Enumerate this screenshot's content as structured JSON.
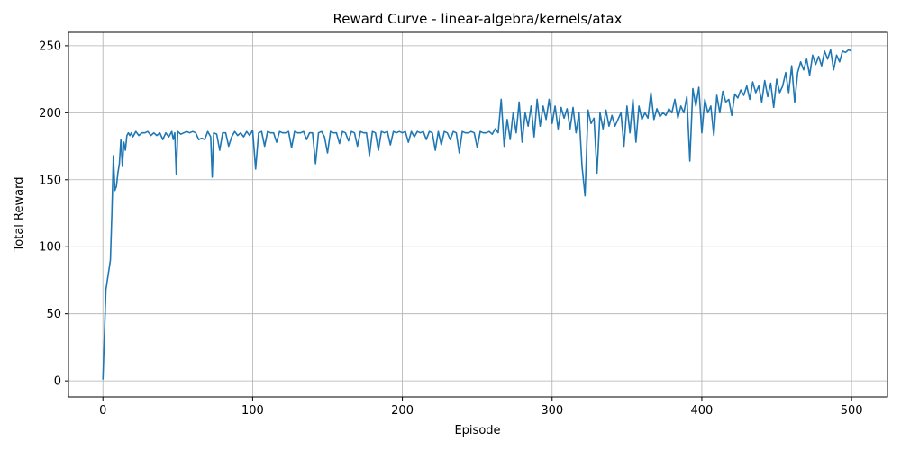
{
  "chart_data": {
    "type": "line",
    "title": "Reward Curve - linear-algebra/kernels/atax",
    "xlabel": "Episode",
    "ylabel": "Total Reward",
    "xlim": [
      -23,
      524
    ],
    "ylim": [
      -12,
      260
    ],
    "xticks": [
      0,
      100,
      200,
      300,
      400,
      500
    ],
    "yticks": [
      0,
      50,
      100,
      150,
      200,
      250
    ],
    "grid": true,
    "series": [
      {
        "color": "#1f77b4",
        "points": [
          [
            0,
            1
          ],
          [
            2,
            68
          ],
          [
            5,
            90
          ],
          [
            6,
            125
          ],
          [
            7,
            168
          ],
          [
            8,
            142
          ],
          [
            9,
            145
          ],
          [
            10,
            155
          ],
          [
            11,
            162
          ],
          [
            12,
            180
          ],
          [
            13,
            160
          ],
          [
            14,
            178
          ],
          [
            15,
            172
          ],
          [
            16,
            183
          ],
          [
            17,
            185
          ],
          [
            18,
            183
          ],
          [
            19,
            185
          ],
          [
            20,
            182
          ],
          [
            22,
            186
          ],
          [
            24,
            183
          ],
          [
            26,
            185
          ],
          [
            28,
            185
          ],
          [
            30,
            186
          ],
          [
            32,
            183
          ],
          [
            34,
            185
          ],
          [
            36,
            183
          ],
          [
            38,
            185
          ],
          [
            40,
            180
          ],
          [
            42,
            185
          ],
          [
            44,
            182
          ],
          [
            46,
            186
          ],
          [
            47,
            180
          ],
          [
            48,
            185
          ],
          [
            49,
            154
          ],
          [
            50,
            186
          ],
          [
            52,
            184
          ],
          [
            54,
            185
          ],
          [
            56,
            186
          ],
          [
            58,
            185
          ],
          [
            60,
            186
          ],
          [
            62,
            185
          ],
          [
            64,
            180
          ],
          [
            66,
            181
          ],
          [
            68,
            180
          ],
          [
            70,
            186
          ],
          [
            72,
            182
          ],
          [
            73,
            152
          ],
          [
            74,
            185
          ],
          [
            76,
            184
          ],
          [
            78,
            172
          ],
          [
            80,
            185
          ],
          [
            82,
            185
          ],
          [
            84,
            175
          ],
          [
            86,
            182
          ],
          [
            88,
            186
          ],
          [
            90,
            183
          ],
          [
            92,
            185
          ],
          [
            94,
            182
          ],
          [
            96,
            186
          ],
          [
            98,
            183
          ],
          [
            100,
            187
          ],
          [
            102,
            158
          ],
          [
            104,
            185
          ],
          [
            106,
            186
          ],
          [
            108,
            175
          ],
          [
            110,
            186
          ],
          [
            112,
            185
          ],
          [
            114,
            185
          ],
          [
            116,
            178
          ],
          [
            118,
            186
          ],
          [
            120,
            185
          ],
          [
            122,
            185
          ],
          [
            124,
            186
          ],
          [
            126,
            174
          ],
          [
            128,
            186
          ],
          [
            130,
            185
          ],
          [
            132,
            185
          ],
          [
            134,
            186
          ],
          [
            136,
            180
          ],
          [
            138,
            185
          ],
          [
            140,
            185
          ],
          [
            142,
            162
          ],
          [
            144,
            185
          ],
          [
            146,
            186
          ],
          [
            148,
            182
          ],
          [
            150,
            170
          ],
          [
            152,
            186
          ],
          [
            154,
            185
          ],
          [
            156,
            185
          ],
          [
            158,
            177
          ],
          [
            160,
            186
          ],
          [
            162,
            185
          ],
          [
            164,
            179
          ],
          [
            166,
            186
          ],
          [
            168,
            185
          ],
          [
            170,
            175
          ],
          [
            172,
            186
          ],
          [
            174,
            185
          ],
          [
            176,
            185
          ],
          [
            178,
            168
          ],
          [
            180,
            186
          ],
          [
            182,
            185
          ],
          [
            184,
            172
          ],
          [
            186,
            186
          ],
          [
            188,
            185
          ],
          [
            190,
            186
          ],
          [
            192,
            176
          ],
          [
            194,
            186
          ],
          [
            196,
            185
          ],
          [
            198,
            186
          ],
          [
            200,
            185
          ],
          [
            202,
            186
          ],
          [
            204,
            178
          ],
          [
            206,
            186
          ],
          [
            208,
            182
          ],
          [
            210,
            186
          ],
          [
            212,
            185
          ],
          [
            214,
            186
          ],
          [
            216,
            180
          ],
          [
            218,
            186
          ],
          [
            220,
            185
          ],
          [
            222,
            172
          ],
          [
            224,
            186
          ],
          [
            226,
            176
          ],
          [
            228,
            186
          ],
          [
            230,
            185
          ],
          [
            232,
            180
          ],
          [
            234,
            186
          ],
          [
            236,
            185
          ],
          [
            238,
            170
          ],
          [
            240,
            186
          ],
          [
            242,
            185
          ],
          [
            244,
            185
          ],
          [
            246,
            186
          ],
          [
            248,
            185
          ],
          [
            250,
            174
          ],
          [
            252,
            186
          ],
          [
            254,
            185
          ],
          [
            256,
            185
          ],
          [
            258,
            186
          ],
          [
            260,
            184
          ],
          [
            262,
            188
          ],
          [
            264,
            185
          ],
          [
            266,
            210
          ],
          [
            268,
            175
          ],
          [
            270,
            195
          ],
          [
            272,
            180
          ],
          [
            274,
            200
          ],
          [
            276,
            185
          ],
          [
            278,
            208
          ],
          [
            280,
            178
          ],
          [
            282,
            200
          ],
          [
            284,
            190
          ],
          [
            286,
            205
          ],
          [
            288,
            182
          ],
          [
            290,
            210
          ],
          [
            292,
            190
          ],
          [
            294,
            205
          ],
          [
            296,
            195
          ],
          [
            298,
            210
          ],
          [
            300,
            192
          ],
          [
            302,
            205
          ],
          [
            304,
            188
          ],
          [
            306,
            204
          ],
          [
            308,
            196
          ],
          [
            310,
            203
          ],
          [
            312,
            188
          ],
          [
            314,
            204
          ],
          [
            316,
            185
          ],
          [
            318,
            200
          ],
          [
            320,
            160
          ],
          [
            322,
            138
          ],
          [
            324,
            202
          ],
          [
            326,
            192
          ],
          [
            328,
            196
          ],
          [
            330,
            155
          ],
          [
            332,
            200
          ],
          [
            334,
            188
          ],
          [
            336,
            202
          ],
          [
            338,
            190
          ],
          [
            340,
            198
          ],
          [
            342,
            190
          ],
          [
            344,
            195
          ],
          [
            346,
            200
          ],
          [
            348,
            175
          ],
          [
            350,
            205
          ],
          [
            352,
            185
          ],
          [
            354,
            210
          ],
          [
            356,
            178
          ],
          [
            358,
            205
          ],
          [
            360,
            195
          ],
          [
            362,
            200
          ],
          [
            364,
            196
          ],
          [
            366,
            215
          ],
          [
            368,
            195
          ],
          [
            370,
            203
          ],
          [
            372,
            197
          ],
          [
            374,
            200
          ],
          [
            376,
            198
          ],
          [
            378,
            203
          ],
          [
            380,
            200
          ],
          [
            382,
            210
          ],
          [
            384,
            196
          ],
          [
            386,
            205
          ],
          [
            388,
            200
          ],
          [
            390,
            212
          ],
          [
            392,
            164
          ],
          [
            394,
            218
          ],
          [
            396,
            205
          ],
          [
            398,
            219
          ],
          [
            400,
            185
          ],
          [
            402,
            210
          ],
          [
            404,
            200
          ],
          [
            406,
            205
          ],
          [
            408,
            183
          ],
          [
            410,
            213
          ],
          [
            412,
            200
          ],
          [
            414,
            216
          ],
          [
            416,
            208
          ],
          [
            418,
            210
          ],
          [
            420,
            198
          ],
          [
            422,
            214
          ],
          [
            424,
            211
          ],
          [
            426,
            217
          ],
          [
            428,
            213
          ],
          [
            430,
            220
          ],
          [
            432,
            210
          ],
          [
            434,
            223
          ],
          [
            436,
            215
          ],
          [
            438,
            220
          ],
          [
            440,
            208
          ],
          [
            442,
            224
          ],
          [
            444,
            212
          ],
          [
            446,
            222
          ],
          [
            448,
            204
          ],
          [
            450,
            225
          ],
          [
            452,
            215
          ],
          [
            454,
            220
          ],
          [
            456,
            230
          ],
          [
            458,
            215
          ],
          [
            460,
            235
          ],
          [
            462,
            208
          ],
          [
            464,
            230
          ],
          [
            466,
            238
          ],
          [
            468,
            232
          ],
          [
            470,
            240
          ],
          [
            472,
            228
          ],
          [
            474,
            243
          ],
          [
            476,
            236
          ],
          [
            478,
            242
          ],
          [
            480,
            235
          ],
          [
            482,
            246
          ],
          [
            484,
            240
          ],
          [
            486,
            247
          ],
          [
            488,
            232
          ],
          [
            490,
            243
          ],
          [
            492,
            238
          ],
          [
            494,
            246
          ],
          [
            496,
            245
          ],
          [
            498,
            247
          ],
          [
            500,
            246
          ]
        ]
      }
    ]
  }
}
